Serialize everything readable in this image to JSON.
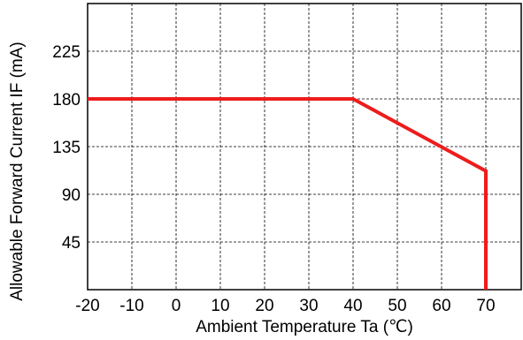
{
  "chart_data": {
    "type": "line",
    "title": "",
    "xlabel": "Ambient Temperature Ta (℃)",
    "ylabel": "Allowable Forward Current IF (mA)",
    "xlim": [
      -20,
      70
    ],
    "ylim": [
      0,
      270
    ],
    "x_ticks": [
      -20,
      -10,
      0,
      10,
      20,
      30,
      40,
      50,
      60,
      70
    ],
    "y_ticks": [
      45,
      90,
      135,
      180,
      225
    ],
    "grid": true,
    "legend": "none",
    "series": [
      {
        "color": "#ee1c1c",
        "x": [
          -20,
          40,
          70,
          70
        ],
        "y": [
          180,
          180,
          112,
          0
        ]
      }
    ]
  }
}
